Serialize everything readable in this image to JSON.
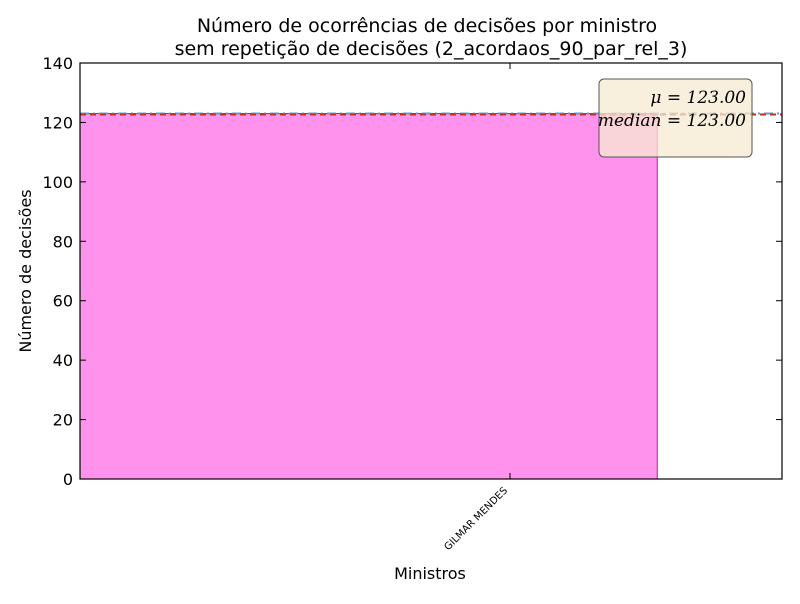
{
  "chart_data": {
    "type": "bar",
    "title_lines": [
      "Número de ocorrências de decisões por ministro",
      "sem repetição de decisões (2_acordaos_90_par_rel_3)"
    ],
    "xlabel": "Ministros",
    "ylabel": "Número de decisões",
    "categories": [
      "GILMAR MENDES"
    ],
    "values": [
      123
    ],
    "ylim": [
      0,
      140
    ],
    "yticks": [
      0,
      20,
      40,
      60,
      80,
      100,
      120,
      140
    ],
    "mean": 123.0,
    "median": 123.0,
    "stats_box": {
      "mean_label": "μ = 123.00",
      "median_label": "median = 123.00",
      "placement": "top-right"
    },
    "colors": {
      "bar_fill": "#ff92ec",
      "bar_edge": "#8b3a7a",
      "mean_line": "#cc2a1e",
      "median_line": "#5aa0d0",
      "stats_box_fill": "#f7e9d1",
      "stats_box_edge": "#555555"
    },
    "grid": false
  }
}
